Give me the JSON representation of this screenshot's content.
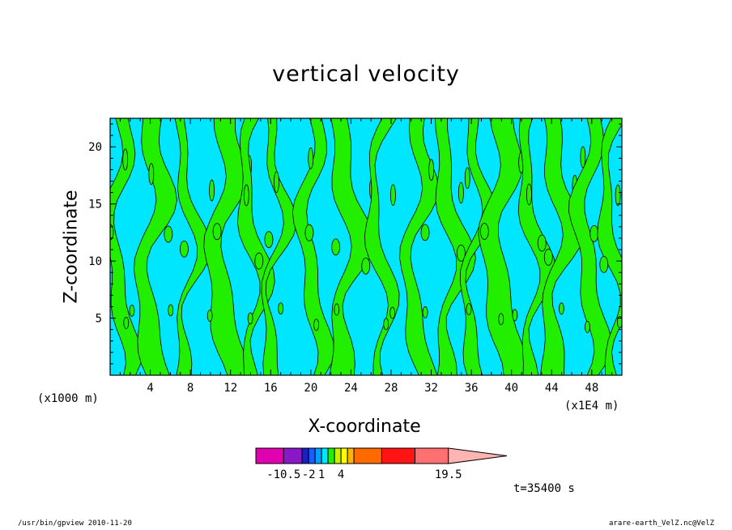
{
  "chart_data": {
    "type": "heatmap",
    "title": "vertical velocity",
    "xlabel": "X-coordinate",
    "ylabel": "Z-coordinate",
    "x_unit_left": "(x1000 m)",
    "x_unit_right": "(x1E4 m)",
    "x_ticks": [
      "4",
      "8",
      "12",
      "16",
      "20",
      "24",
      "28",
      "32",
      "36",
      "40",
      "44",
      "48"
    ],
    "x_tick_values": [
      4,
      8,
      12,
      16,
      20,
      24,
      28,
      32,
      36,
      40,
      44,
      48
    ],
    "xlim": [
      0,
      51
    ],
    "y_ticks": [
      "5",
      "10",
      "15",
      "20"
    ],
    "y_tick_values": [
      5,
      10,
      15,
      20
    ],
    "ylim": [
      0,
      22.5
    ],
    "contour_fill": {
      "negative_color": "#00e6ff",
      "positive_color": "#22ee00",
      "contour_line_color": "#000000"
    },
    "positive_bands": [
      {
        "x": 0.9,
        "w": 1.6,
        "phase": 0.3
      },
      {
        "x": 4.2,
        "w": 2.1,
        "phase": 1.1
      },
      {
        "x": 7.8,
        "w": 1.2,
        "phase": 2.0
      },
      {
        "x": 11.4,
        "w": 2.4,
        "phase": 0.7
      },
      {
        "x": 14.2,
        "w": 1.5,
        "phase": 2.6
      },
      {
        "x": 16.4,
        "w": 1.1,
        "phase": 1.5
      },
      {
        "x": 20.1,
        "w": 1.6,
        "phase": 0.2
      },
      {
        "x": 23.6,
        "w": 2.2,
        "phase": 1.9
      },
      {
        "x": 26.9,
        "w": 1.3,
        "phase": 2.9
      },
      {
        "x": 30.6,
        "w": 1.7,
        "phase": 0.9
      },
      {
        "x": 33.9,
        "w": 1.8,
        "phase": 2.2
      },
      {
        "x": 36.3,
        "w": 1.2,
        "phase": 1.3
      },
      {
        "x": 38.9,
        "w": 2.6,
        "phase": 0.5
      },
      {
        "x": 42.1,
        "w": 1.5,
        "phase": 2.4
      },
      {
        "x": 44.6,
        "w": 2.0,
        "phase": 1.7
      },
      {
        "x": 47.7,
        "w": 1.8,
        "phase": 0.1
      },
      {
        "x": 50.1,
        "w": 1.4,
        "phase": 2.8
      }
    ],
    "colorbar": {
      "colors": [
        "#e000b0",
        "#8a18c8",
        "#1822c0",
        "#1a5cff",
        "#00a0ff",
        "#00e6ff",
        "#22ee00",
        "#c8f000",
        "#ffff00",
        "#ffb400",
        "#ff6a00",
        "#ff1414",
        "#ff7070",
        "#ffb4b4"
      ],
      "widths": [
        1.5,
        1.0,
        0.35,
        0.35,
        0.35,
        0.35,
        0.35,
        0.35,
        0.35,
        0.35,
        1.5,
        1.8,
        1.8,
        1.5
      ],
      "tick_labels": [
        "-10.5",
        "-2",
        "1",
        "4",
        "19.5"
      ]
    },
    "time_label": "t=35400 s"
  },
  "footer": {
    "left": "/usr/bin/gpview  2010-11-20",
    "right": "arare-earth_VelZ.nc@VelZ"
  }
}
